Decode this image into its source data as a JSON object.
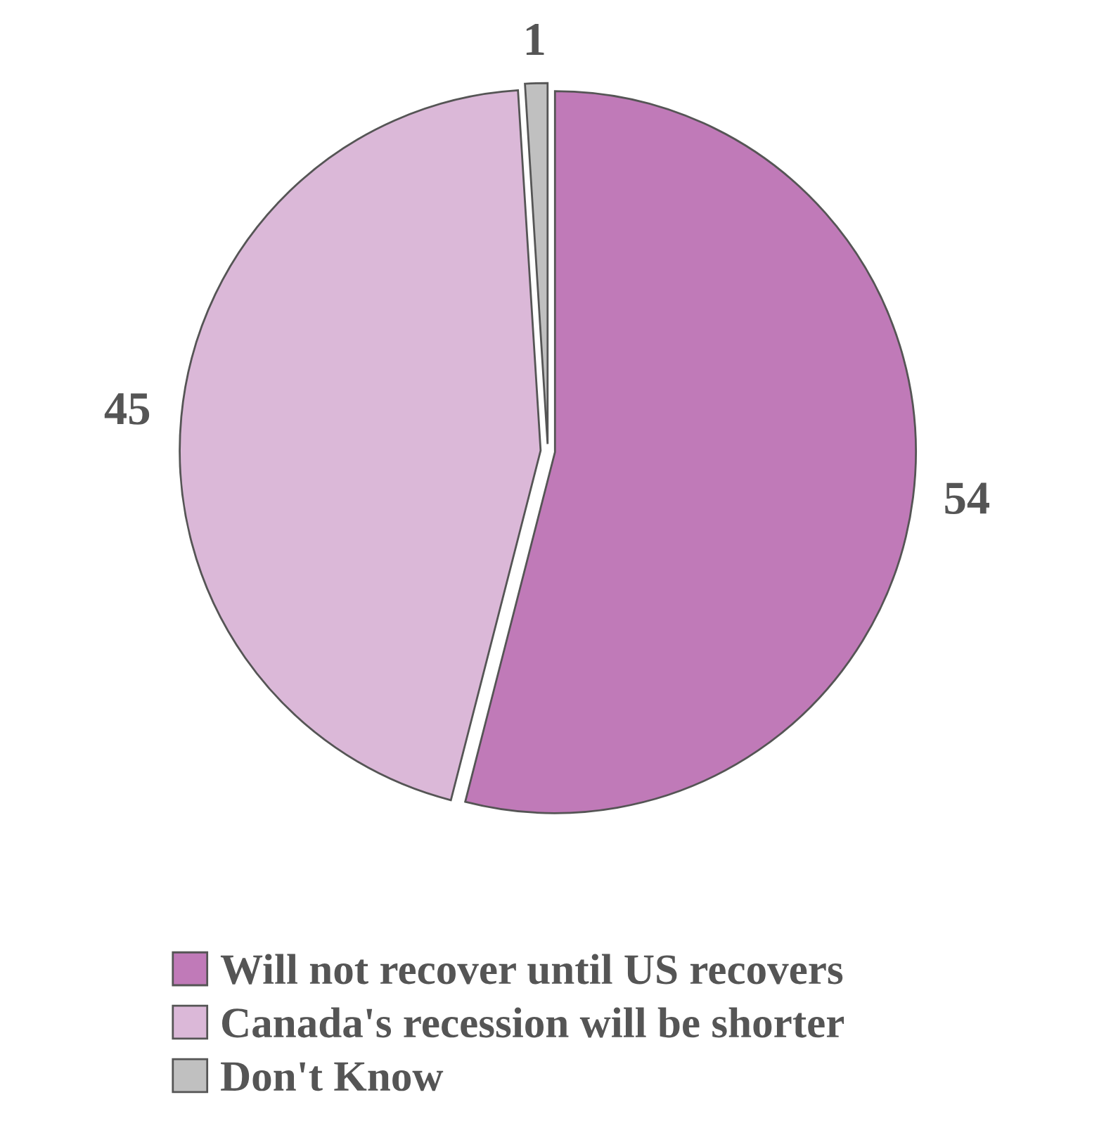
{
  "chart_data": {
    "type": "pie",
    "categories": [
      "Will not recover until US recovers",
      "Canada's recession will be shorter",
      "Don't Know"
    ],
    "values": [
      54,
      45,
      1
    ],
    "colors": [
      "#c07ab8",
      "#dbb8d8",
      "#c0c0c0"
    ],
    "data_labels": true,
    "legend": "bottom"
  }
}
